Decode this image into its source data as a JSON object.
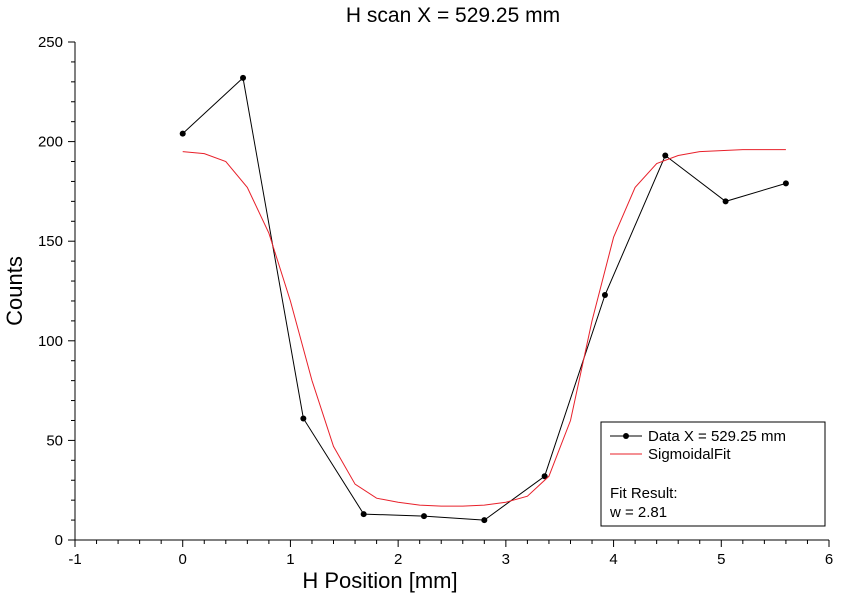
{
  "chart_data": {
    "type": "line",
    "title": "H scan X = 529.25 mm",
    "xlabel": "H Position [mm]",
    "ylabel": "Counts",
    "xlim": [
      -1,
      6
    ],
    "ylim": [
      0,
      250
    ],
    "x_ticks": [
      -1,
      0,
      1,
      2,
      3,
      4,
      5,
      6
    ],
    "y_ticks": [
      0,
      50,
      100,
      150,
      200,
      250
    ],
    "grid": false,
    "legend_position": "bottom-right",
    "series": [
      {
        "name": "Data X = 529.25 mm",
        "color": "#000000",
        "marker": "circle",
        "x": [
          0.0,
          0.56,
          1.12,
          1.68,
          2.24,
          2.8,
          3.36,
          3.92,
          4.48,
          5.04,
          5.6
        ],
        "y": [
          204,
          232,
          61,
          13,
          12,
          10,
          32,
          123,
          193,
          170,
          179
        ]
      },
      {
        "name": "SigmoidalFit",
        "color": "#e8202a",
        "marker": "none",
        "x": [
          0.0,
          0.2,
          0.4,
          0.6,
          0.8,
          1.0,
          1.2,
          1.4,
          1.6,
          1.8,
          2.0,
          2.2,
          2.4,
          2.6,
          2.8,
          3.0,
          3.2,
          3.4,
          3.6,
          3.8,
          4.0,
          4.2,
          4.4,
          4.6,
          4.8,
          5.0,
          5.2,
          5.4,
          5.6
        ],
        "y": [
          195,
          194,
          190,
          177,
          154,
          120,
          80,
          47,
          28,
          21,
          19,
          17.5,
          17,
          17,
          17.5,
          19,
          22,
          32,
          60,
          110,
          152,
          177,
          189,
          193,
          195,
          195.5,
          196,
          196,
          196
        ]
      }
    ],
    "annotation": {
      "heading": "Fit Result:",
      "value": "w = 2.81"
    }
  }
}
